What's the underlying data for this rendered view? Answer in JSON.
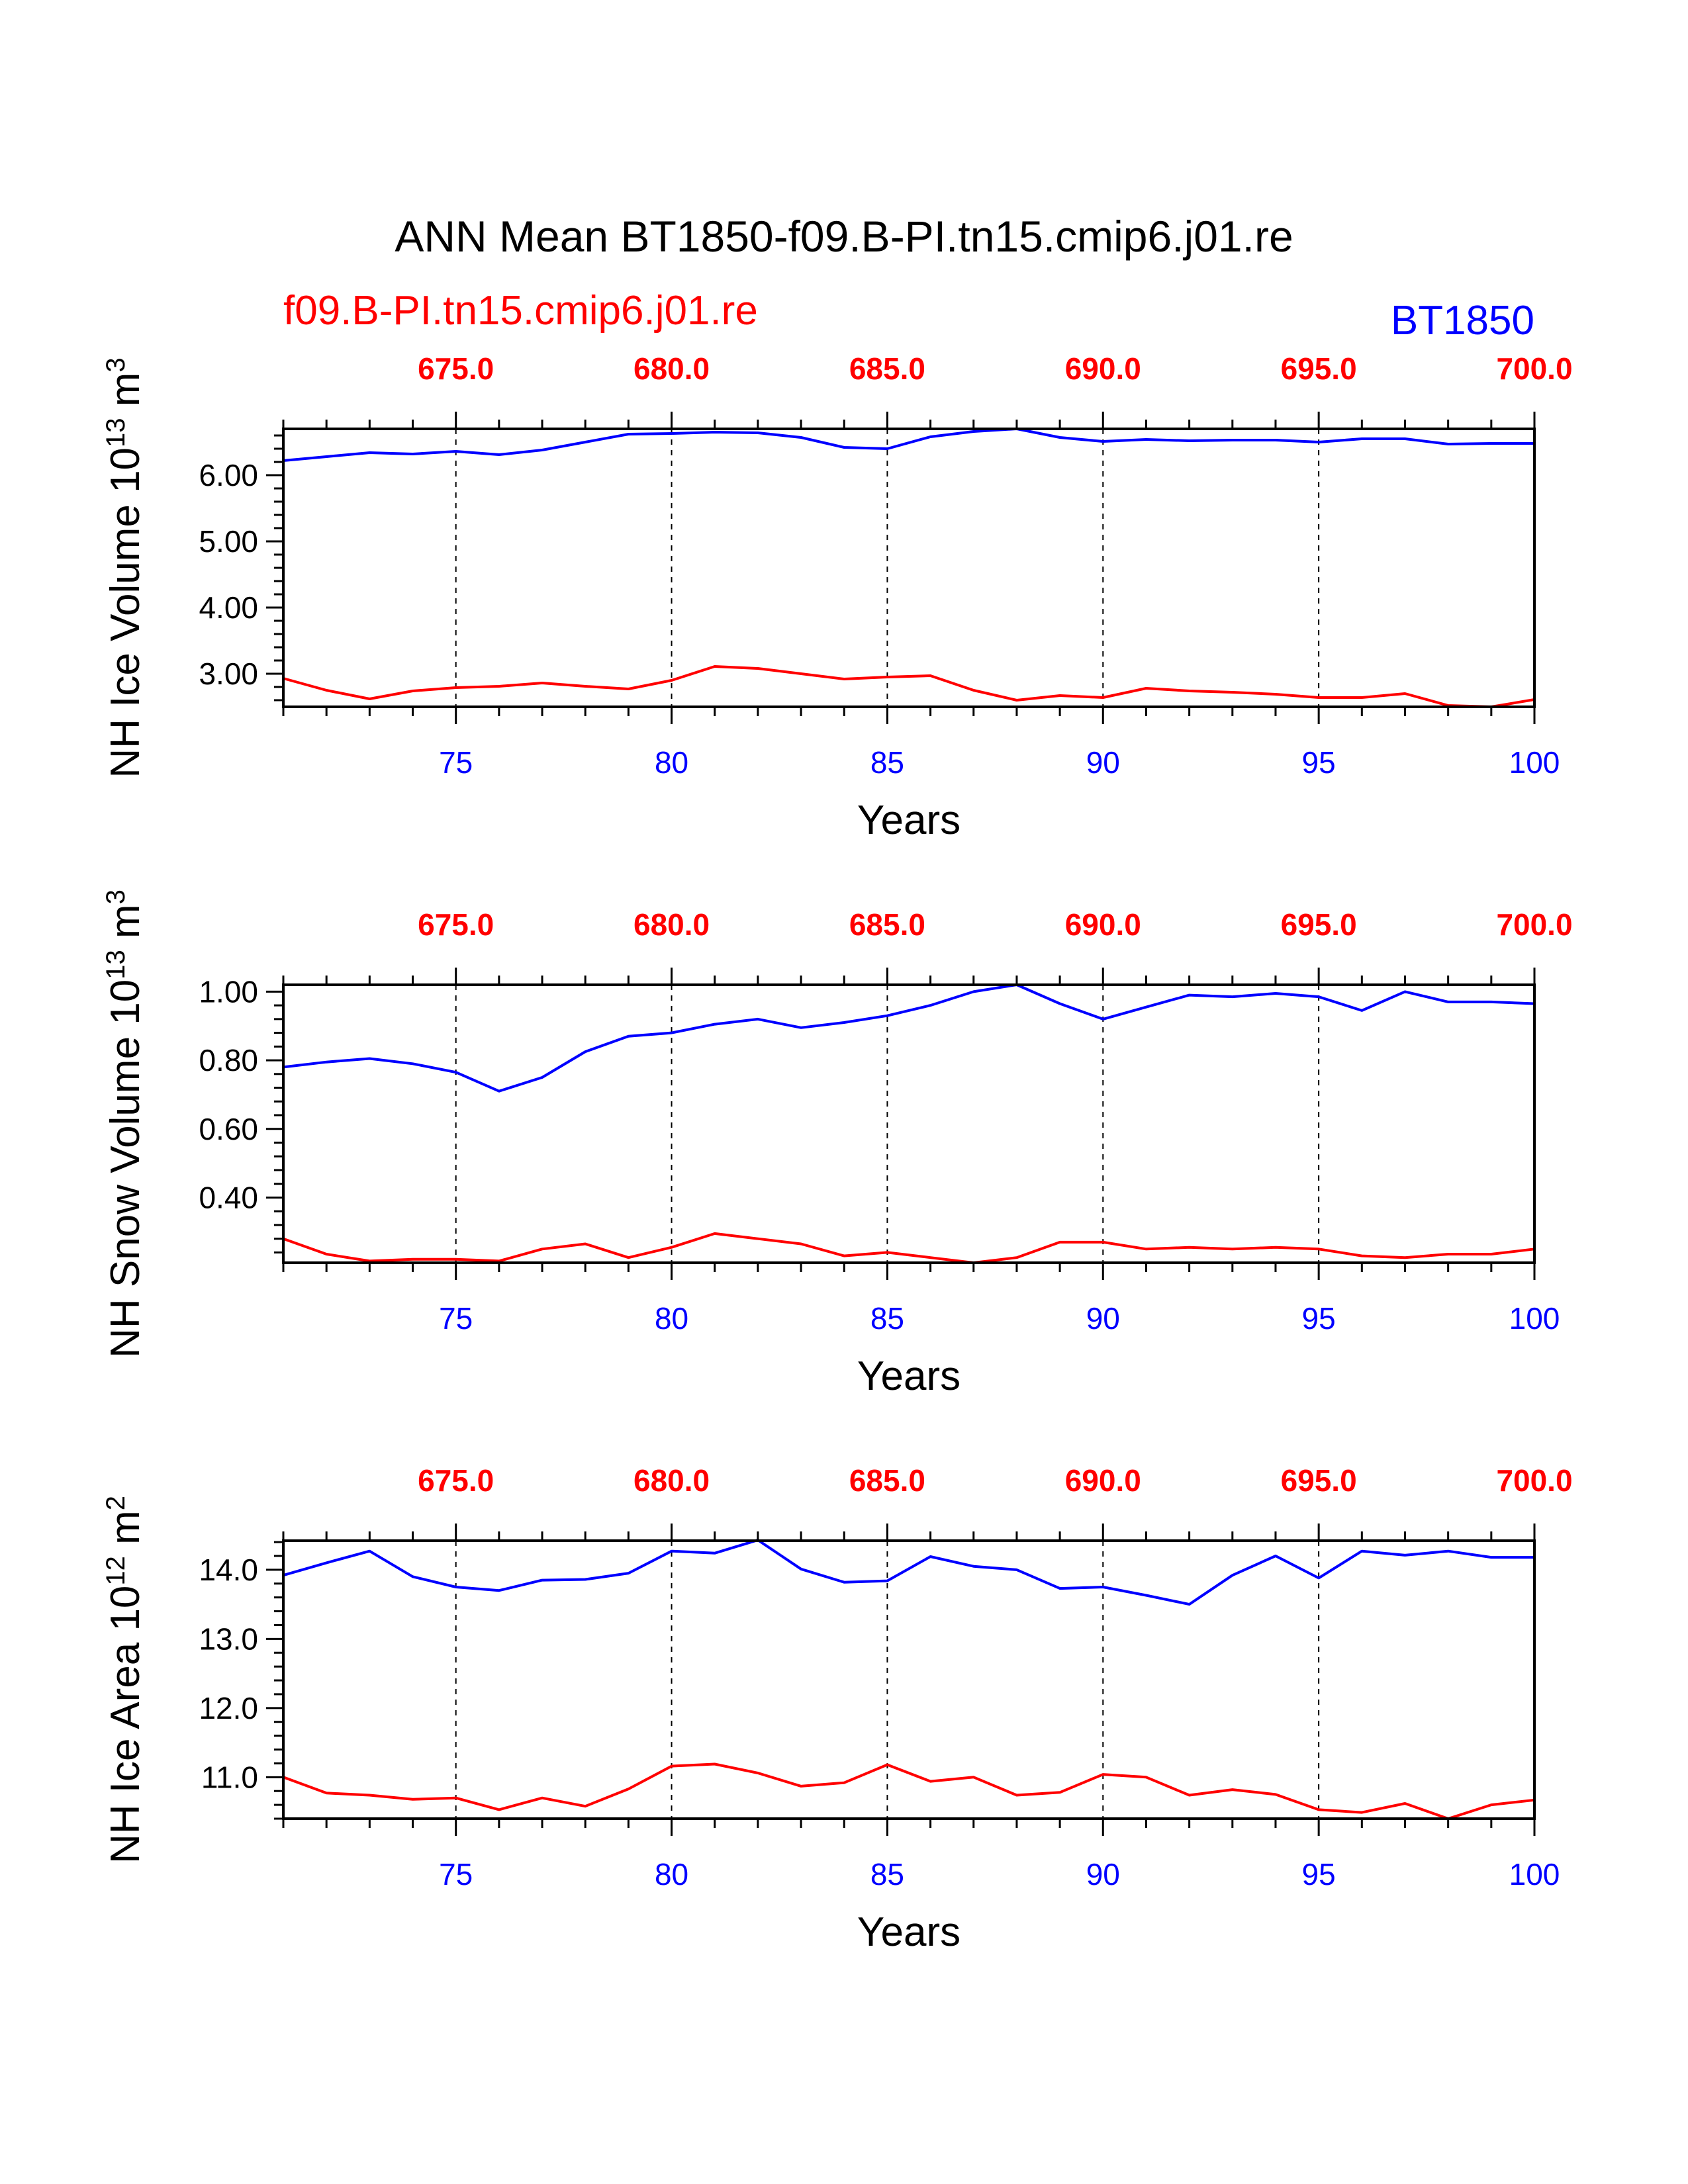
{
  "figure": {
    "title": "ANN Mean BT1850-f09.B-PI.tn15.cmip6.j01.re",
    "case_left": "f09.B-PI.tn15.cmip6.j01.re",
    "case_right": "BT1850",
    "colors": {
      "case_left": "#ff0000",
      "case_right": "#0000ff",
      "axes": "#000000"
    }
  },
  "chart_data": [
    {
      "type": "line",
      "title": "",
      "ylabel": "NH Ice Volume 10",
      "ylabel_exp": "13",
      "ylabel_unit": " m",
      "ylabel_unit_exp": "3",
      "xlabel": "Years",
      "xlim": [
        71,
        100
      ],
      "ylim": [
        2.5,
        6.7
      ],
      "yticks": [
        "3.00",
        "4.00",
        "5.00",
        "6.00"
      ],
      "xticks_bottom": [
        "75",
        "80",
        "85",
        "90",
        "95",
        "100"
      ],
      "xticks_top": [
        "675.0",
        "680.0",
        "685.0",
        "690.0",
        "695.0",
        "700.0"
      ],
      "grid": "vertical dashed at major x ticks",
      "x": [
        71,
        72,
        73,
        74,
        75,
        76,
        77,
        78,
        79,
        80,
        81,
        82,
        83,
        84,
        85,
        86,
        87,
        88,
        89,
        90,
        91,
        92,
        93,
        94,
        95,
        96,
        97,
        98,
        99,
        100
      ],
      "series": [
        {
          "color": "#0000ff",
          "values": [
            6.22,
            6.28,
            6.34,
            6.32,
            6.36,
            6.31,
            6.38,
            6.5,
            6.62,
            6.63,
            6.65,
            6.64,
            6.57,
            6.42,
            6.4,
            6.58,
            6.66,
            6.7,
            6.57,
            6.51,
            6.54,
            6.52,
            6.53,
            6.53,
            6.5,
            6.55,
            6.55,
            6.47,
            6.48,
            6.48
          ]
        },
        {
          "color": "#ff0000",
          "values": [
            2.93,
            2.75,
            2.62,
            2.74,
            2.79,
            2.81,
            2.86,
            2.81,
            2.77,
            2.9,
            3.11,
            3.08,
            3.0,
            2.92,
            2.95,
            2.97,
            2.75,
            2.6,
            2.67,
            2.64,
            2.78,
            2.74,
            2.72,
            2.69,
            2.64,
            2.64,
            2.7,
            2.52,
            2.5,
            2.61
          ]
        }
      ]
    },
    {
      "type": "line",
      "title": "",
      "ylabel": "NH Snow Volume 10",
      "ylabel_exp": "13",
      "ylabel_unit": " m",
      "ylabel_unit_exp": "3",
      "xlabel": "Years",
      "xlim": [
        71,
        100
      ],
      "ylim": [
        0.21,
        1.02
      ],
      "yticks": [
        "0.40",
        "0.60",
        "0.80",
        "1.00"
      ],
      "xticks_bottom": [
        "75",
        "80",
        "85",
        "90",
        "95",
        "100"
      ],
      "xticks_top": [
        "675.0",
        "680.0",
        "685.0",
        "690.0",
        "695.0",
        "700.0"
      ],
      "grid": "vertical dashed at major x ticks",
      "x": [
        71,
        72,
        73,
        74,
        75,
        76,
        77,
        78,
        79,
        80,
        81,
        82,
        83,
        84,
        85,
        86,
        87,
        88,
        89,
        90,
        91,
        92,
        93,
        94,
        95,
        96,
        97,
        98,
        99,
        100
      ],
      "series": [
        {
          "color": "#0000ff",
          "values": [
            0.78,
            0.795,
            0.805,
            0.79,
            0.765,
            0.71,
            0.75,
            0.825,
            0.87,
            0.88,
            0.905,
            0.92,
            0.895,
            0.91,
            0.93,
            0.96,
            1.0,
            1.02,
            0.965,
            0.92,
            0.955,
            0.99,
            0.985,
            0.995,
            0.985,
            0.945,
            1.0,
            0.97,
            0.97,
            0.965
          ]
        },
        {
          "color": "#ff0000",
          "values": [
            0.28,
            0.235,
            0.215,
            0.22,
            0.22,
            0.215,
            0.25,
            0.265,
            0.225,
            0.255,
            0.295,
            0.28,
            0.265,
            0.23,
            0.24,
            0.225,
            0.21,
            0.225,
            0.27,
            0.27,
            0.25,
            0.255,
            0.25,
            0.255,
            0.25,
            0.23,
            0.225,
            0.235,
            0.235,
            0.25
          ]
        }
      ]
    },
    {
      "type": "line",
      "title": "",
      "ylabel": "NH Ice Area 10",
      "ylabel_exp": "12",
      "ylabel_unit": " m",
      "ylabel_unit_exp": "2",
      "xlabel": "Years",
      "xlim": [
        71,
        100
      ],
      "ylim": [
        10.4,
        14.42
      ],
      "yticks": [
        "11.0",
        "12.0",
        "13.0",
        "14.0"
      ],
      "xticks_bottom": [
        "75",
        "80",
        "85",
        "90",
        "95",
        "100"
      ],
      "xticks_top": [
        "675.0",
        "680.0",
        "685.0",
        "690.0",
        "695.0",
        "700.0"
      ],
      "grid": "vertical dashed at major x ticks",
      "x": [
        71,
        72,
        73,
        74,
        75,
        76,
        77,
        78,
        79,
        80,
        81,
        82,
        83,
        84,
        85,
        86,
        87,
        88,
        89,
        90,
        91,
        92,
        93,
        94,
        95,
        96,
        97,
        98,
        99,
        100
      ],
      "series": [
        {
          "color": "#0000ff",
          "values": [
            13.92,
            14.1,
            14.27,
            13.9,
            13.75,
            13.7,
            13.85,
            13.86,
            13.95,
            14.27,
            14.24,
            14.43,
            14.01,
            13.82,
            13.84,
            14.19,
            14.05,
            14.0,
            13.73,
            13.75,
            13.63,
            13.5,
            13.92,
            14.2,
            13.88,
            14.27,
            14.21,
            14.27,
            14.18,
            14.18
          ]
        },
        {
          "color": "#ff0000",
          "values": [
            11.0,
            10.77,
            10.74,
            10.68,
            10.7,
            10.53,
            10.7,
            10.58,
            10.83,
            11.16,
            11.19,
            11.06,
            10.87,
            10.92,
            11.18,
            10.94,
            11.0,
            10.74,
            10.78,
            11.04,
            11.0,
            10.74,
            10.82,
            10.75,
            10.53,
            10.49,
            10.62,
            10.4,
            10.6,
            10.67
          ]
        }
      ]
    }
  ]
}
